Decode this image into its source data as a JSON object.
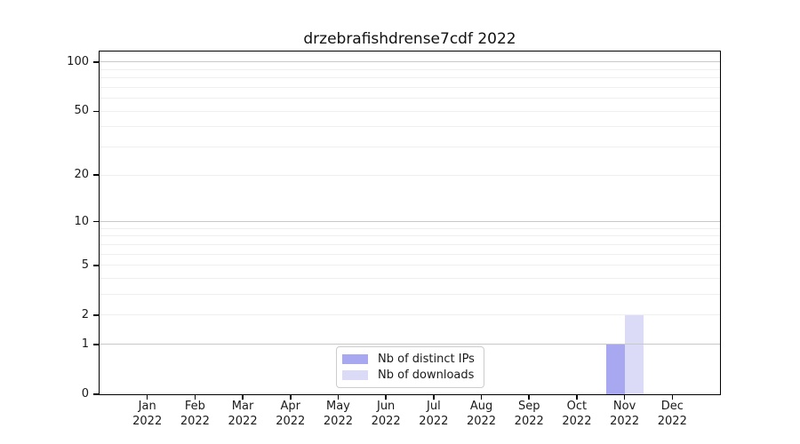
{
  "figure": {
    "title": "drzebrafishdrense7cdf 2022"
  },
  "chart_data": {
    "type": "bar",
    "title": "drzebrafishdrense7cdf 2022",
    "xlabel": "",
    "ylabel": "",
    "categories": [
      "Jan 2022",
      "Feb 2022",
      "Mar 2022",
      "Apr 2022",
      "May 2022",
      "Jun 2022",
      "Jul 2022",
      "Aug 2022",
      "Sep 2022",
      "Oct 2022",
      "Nov 2022",
      "Dec 2022"
    ],
    "x_tick_line1": [
      "Jan",
      "Feb",
      "Mar",
      "Apr",
      "May",
      "Jun",
      "Jul",
      "Aug",
      "Sep",
      "Oct",
      "Nov",
      "Dec"
    ],
    "x_tick_line2": "2022",
    "series": [
      {
        "name": "Nb of distinct IPs",
        "color": "#a8a8f1",
        "values": [
          0,
          0,
          0,
          0,
          0,
          0,
          0,
          0,
          0,
          0,
          1,
          0
        ]
      },
      {
        "name": "Nb of downloads",
        "color": "#dbdbf8",
        "values": [
          0,
          0,
          0,
          0,
          0,
          0,
          0,
          0,
          0,
          0,
          2,
          0
        ]
      }
    ],
    "yscale": "log1p",
    "ylim": [
      0,
      116
    ],
    "y_tick_values": [
      0,
      1,
      2,
      5,
      10,
      20,
      50,
      100
    ],
    "y_tick_labels": [
      "0",
      "1",
      "2",
      "5",
      "10",
      "20",
      "50",
      "100"
    ],
    "y_major_gridline_values": [
      1,
      10,
      100
    ],
    "y_minor_gridline_values": [
      2,
      3,
      4,
      5,
      6,
      7,
      8,
      9,
      20,
      30,
      40,
      50,
      60,
      70,
      80,
      90
    ],
    "grid": "horizontal only",
    "legend": {
      "position": "lower center",
      "items": [
        "Nb of distinct IPs",
        "Nb of downloads"
      ]
    }
  },
  "colors": {
    "background": "#ffffff",
    "spine": "#000000",
    "major_grid": "#c8c8c8",
    "minor_grid": "#efefef",
    "text": "#1a1a1a",
    "legend_border": "#cccccc",
    "bar_distinct_ips": "#a8a8f1",
    "bar_downloads": "#dbdbf8"
  }
}
